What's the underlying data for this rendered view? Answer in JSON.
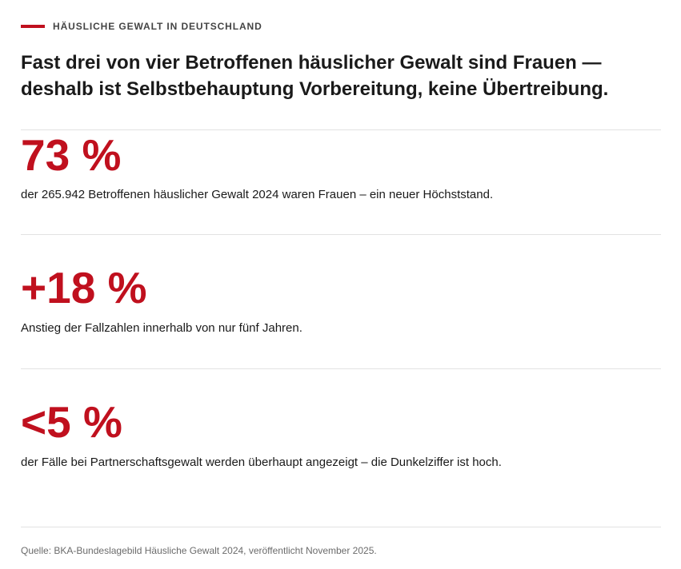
{
  "kicker": "HÄUSLICHE GEWALT IN DEUTSCHLAND",
  "headline": {
    "line1": "Fast drei von vier Betroffenen häuslicher Gewalt sind Frauen —",
    "line2": "deshalb ist Selbstbehauptung Vorbereitung, keine Übertreibung."
  },
  "stats": [
    {
      "value": "73 %",
      "description": "der 265.942 Betroffenen häuslicher Gewalt 2024 waren Frauen – ein neuer Höchststand."
    },
    {
      "value": "+18 %",
      "description": "Anstieg der Fallzahlen innerhalb von nur fünf Jahren."
    },
    {
      "value": "<5 %",
      "description": "der Fälle bei Partnerschaftsgewalt werden überhaupt angezeigt – die Dunkelziffer ist hoch."
    }
  ],
  "source": "Quelle: BKA-Bundeslagebild Häusliche Gewalt 2024, veröffentlicht November 2025.",
  "colors": {
    "accent": "#c0101e",
    "text": "#1a1a1a",
    "muted": "#6b6b6b",
    "rule": "#e2e2e2"
  }
}
